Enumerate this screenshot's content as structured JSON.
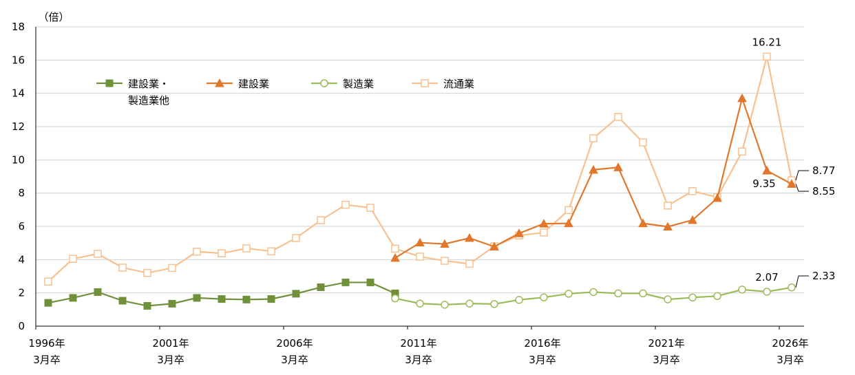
{
  "chart_data": {
    "type": "line",
    "y_unit_label": "（倍）",
    "ylim": [
      0,
      18
    ],
    "y_ticks": [
      "0",
      "2",
      "4",
      "6",
      "8",
      "10",
      "12",
      "14",
      "16",
      "18"
    ],
    "grid": true,
    "x_years": [
      1996,
      1997,
      1998,
      1999,
      2000,
      2001,
      2002,
      2003,
      2004,
      2005,
      2006,
      2007,
      2008,
      2009,
      2010,
      2011,
      2012,
      2013,
      2014,
      2015,
      2016,
      2017,
      2018,
      2019,
      2020,
      2021,
      2022,
      2023,
      2024,
      2025,
      2026
    ],
    "x_tick_labels": [
      {
        "year": 1996,
        "line1": "1996年",
        "line2": "3月卒"
      },
      {
        "year": 2001,
        "line1": "2001年",
        "line2": "3月卒"
      },
      {
        "year": 2006,
        "line1": "2006年",
        "line2": "3月卒"
      },
      {
        "year": 2011,
        "line1": "2011年",
        "line2": "3月卒"
      },
      {
        "year": 2016,
        "line1": "2016年",
        "line2": "3月卒"
      },
      {
        "year": 2021,
        "line1": "2021年",
        "line2": "3月卒"
      },
      {
        "year": 2026,
        "line1": "2026年",
        "line2": "3月卒"
      }
    ],
    "legend": [
      {
        "line1": "建設業・",
        "line2": "製造業他",
        "series": 0
      },
      {
        "line1": "建設業",
        "line2": "",
        "series": 1
      },
      {
        "line1": "製造業",
        "line2": "",
        "series": 2
      },
      {
        "line1": "流通業",
        "line2": "",
        "series": 3
      }
    ],
    "series": [
      {
        "name": "建設業・製造業他",
        "color": "#70913a",
        "marker": "square-filled",
        "x": [
          1996,
          1997,
          1998,
          1999,
          2000,
          2001,
          2002,
          2003,
          2004,
          2005,
          2006,
          2007,
          2008,
          2009,
          2010
        ],
        "y": [
          1.4,
          1.7,
          2.05,
          1.53,
          1.22,
          1.35,
          1.7,
          1.63,
          1.6,
          1.63,
          1.95,
          2.34,
          2.63,
          2.63,
          1.97
        ]
      },
      {
        "name": "建設業",
        "color": "#e0772a",
        "marker": "triangle-filled",
        "x": [
          2010,
          2011,
          2012,
          2013,
          2014,
          2015,
          2016,
          2017,
          2018,
          2019,
          2020,
          2021,
          2022,
          2023,
          2024,
          2025,
          2026
        ],
        "y": [
          4.1,
          5.02,
          4.94,
          5.3,
          4.78,
          5.58,
          6.16,
          6.18,
          9.4,
          9.55,
          6.18,
          5.98,
          6.38,
          7.7,
          13.7,
          9.35,
          8.55
        ]
      },
      {
        "name": "製造業",
        "color": "#9bbb59",
        "marker": "circle-open",
        "x": [
          2010,
          2011,
          2012,
          2013,
          2014,
          2015,
          2016,
          2017,
          2018,
          2019,
          2020,
          2021,
          2022,
          2023,
          2024,
          2025,
          2026
        ],
        "y": [
          1.67,
          1.36,
          1.29,
          1.36,
          1.33,
          1.58,
          1.73,
          1.95,
          2.05,
          1.97,
          1.97,
          1.61,
          1.72,
          1.81,
          2.2,
          2.07,
          2.33
        ]
      },
      {
        "name": "流通業",
        "color": "#f8c08f",
        "marker": "square-open",
        "x": [
          1996,
          1997,
          1998,
          1999,
          2000,
          2001,
          2002,
          2003,
          2004,
          2005,
          2006,
          2007,
          2008,
          2009,
          2010,
          2011,
          2012,
          2013,
          2014,
          2015,
          2016,
          2017,
          2018,
          2019,
          2020,
          2021,
          2022,
          2023,
          2024,
          2025,
          2026
        ],
        "y": [
          2.68,
          4.05,
          4.35,
          3.52,
          3.2,
          3.5,
          4.48,
          4.38,
          4.68,
          4.5,
          5.3,
          6.37,
          7.3,
          7.12,
          4.66,
          4.18,
          3.93,
          3.75,
          4.8,
          5.45,
          5.63,
          6.98,
          11.3,
          12.58,
          11.05,
          7.25,
          8.12,
          7.75,
          10.5,
          16.21,
          8.77
        ]
      }
    ],
    "annotations": [
      {
        "text": "16.21",
        "series": 3,
        "year": 2025,
        "placement": "above"
      },
      {
        "text": "9.35",
        "series": 1,
        "year": 2025,
        "placement": "below-left"
      },
      {
        "text": "8.77",
        "series": 3,
        "year": 2026,
        "placement": "callout-right"
      },
      {
        "text": "8.55",
        "series": 1,
        "year": 2026,
        "placement": "callout-right"
      },
      {
        "text": "2.07",
        "series": 2,
        "year": 2025,
        "placement": "above"
      },
      {
        "text": "2.33",
        "series": 2,
        "year": 2026,
        "placement": "callout-right"
      }
    ]
  }
}
